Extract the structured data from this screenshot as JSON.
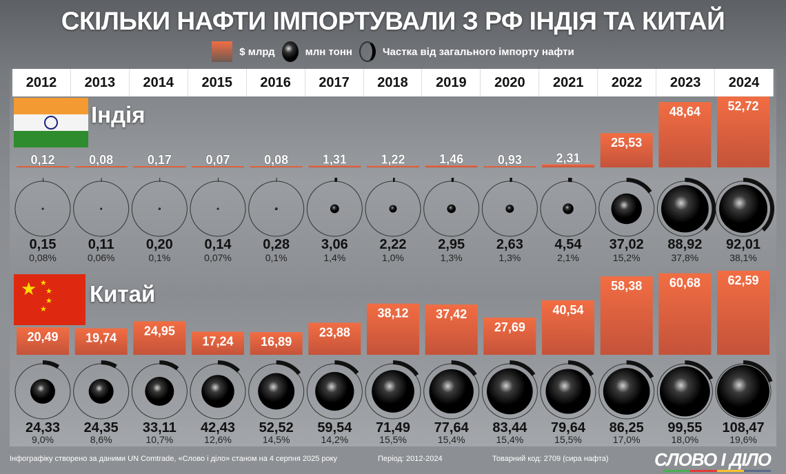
{
  "title": "СКІЛЬКИ НАФТИ ІМПОРТУВАЛИ З РФ ІНДІЯ ТА КИТАЙ",
  "legend": {
    "value_usd": "$ млрд",
    "volume": "млн тонн",
    "share": "Частка від загального імпорту нафти"
  },
  "colors": {
    "bar": "#f26d43",
    "ball": "#000000",
    "header": "#ffffff"
  },
  "footer": {
    "source": "Інфографіку створено за даними UN Comtrade, «Слово і діло» станом на 4 серпня 2025 року",
    "period": "Період: 2012-2024",
    "code": "Товарний код: 2709 (сира нафта)",
    "logo": "СЛОВО І ДІЛО"
  },
  "chart_data": {
    "type": "bar",
    "categories": [
      "2012",
      "2013",
      "2014",
      "2015",
      "2016",
      "2017",
      "2018",
      "2019",
      "2020",
      "2021",
      "2022",
      "2023",
      "2024"
    ],
    "countries": [
      {
        "name": "Індія",
        "usd_bn": [
          "0,12",
          "0,08",
          "0,17",
          "0,07",
          "0,08",
          "1,31",
          "1,22",
          "1,46",
          "0,93",
          "2,31",
          "25,53",
          "48,64",
          "52,72"
        ],
        "mln_t": [
          "0,15",
          "0,11",
          "0,20",
          "0,14",
          "0,28",
          "3,06",
          "2,22",
          "2,95",
          "2,63",
          "4,54",
          "37,02",
          "88,92",
          "92,01"
        ],
        "share": [
          "0,08%",
          "0,06%",
          "0,1%",
          "0,07%",
          "0,1%",
          "1,4%",
          "1,0%",
          "1,3%",
          "1,3%",
          "2,1%",
          "15,2%",
          "37,8%",
          "38,1%"
        ]
      },
      {
        "name": "Китай",
        "usd_bn": [
          "20,49",
          "19,74",
          "24,95",
          "17,24",
          "16,89",
          "23,88",
          "38,12",
          "37,42",
          "27,69",
          "40,54",
          "58,38",
          "60,68",
          "62,59"
        ],
        "mln_t": [
          "24,33",
          "24,35",
          "33,11",
          "42,43",
          "52,52",
          "59,54",
          "71,49",
          "77,64",
          "83,44",
          "79,64",
          "86,25",
          "99,55",
          "108,47"
        ],
        "share": [
          "9,0%",
          "8,6%",
          "10,7%",
          "12,6%",
          "14,5%",
          "14,2%",
          "15,5%",
          "15,4%",
          "15,4%",
          "15,5%",
          "17,0%",
          "18,0%",
          "19,6%"
        ]
      }
    ]
  }
}
